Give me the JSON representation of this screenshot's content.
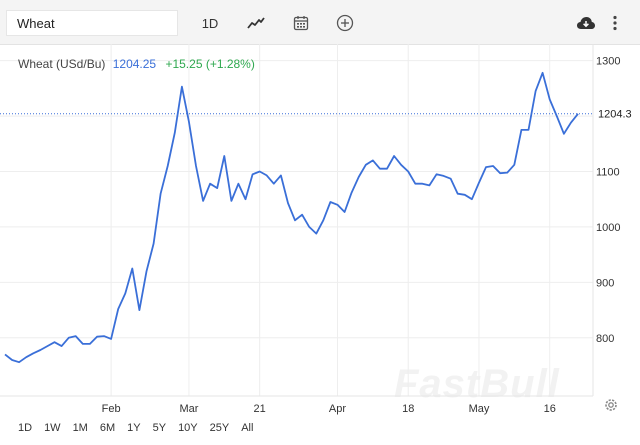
{
  "toolbar": {
    "symbol_value": "Wheat",
    "interval_label": "1D",
    "icons": [
      "line-chart-icon",
      "calendar-icon",
      "add-circle-icon",
      "cloud-download-icon",
      "more-vertical-icon"
    ]
  },
  "legend": {
    "symbol": "Wheat (USd/Bu)",
    "price": "1204.25",
    "change": "+15.25 (+1.28%)"
  },
  "range_buttons": [
    "1D",
    "1W",
    "1M",
    "6M",
    "1Y",
    "5Y",
    "10Y",
    "25Y",
    "All"
  ],
  "watermark": "FastBull",
  "colors": {
    "line": "#3a6fd8",
    "price_label_bg": "#ffffff",
    "change_positive": "#2fa84f",
    "grid": "#eeeeee"
  },
  "chart_data": {
    "type": "line",
    "series": [
      {
        "name": "Wheat",
        "values": [
          770,
          760,
          756,
          765,
          772,
          778,
          785,
          792,
          785,
          800,
          803,
          789,
          789,
          802,
          803,
          798,
          852,
          880,
          925,
          850,
          920,
          970,
          1060,
          1110,
          1170,
          1253,
          1190,
          1110,
          1047,
          1078,
          1070,
          1128,
          1047,
          1078,
          1050,
          1095,
          1100,
          1093,
          1078,
          1093,
          1043,
          1012,
          1022,
          1000,
          988,
          1012,
          1045,
          1040,
          1027,
          1062,
          1090,
          1112,
          1120,
          1105,
          1105,
          1128,
          1112,
          1100,
          1078,
          1078,
          1075,
          1095,
          1092,
          1087,
          1060,
          1058,
          1050,
          1080,
          1108,
          1110,
          1097,
          1098,
          1112,
          1175,
          1175,
          1245,
          1278,
          1230,
          1200,
          1168,
          1188,
          1204
        ]
      }
    ],
    "y_ticks": [
      800,
      900,
      1000,
      1100,
      1200,
      1300
    ],
    "ylim": [
      695,
      1330
    ],
    "x_labels": [
      {
        "label": "Feb",
        "index": 15
      },
      {
        "label": "Mar",
        "index": 26
      },
      {
        "label": "21",
        "index": 36
      },
      {
        "label": "Apr",
        "index": 47
      },
      {
        "label": "18",
        "index": 57
      },
      {
        "label": "May",
        "index": 67
      },
      {
        "label": "16",
        "index": 77
      }
    ],
    "last_price_label": "1204.3",
    "last_price": 1204.25,
    "grid": true
  }
}
